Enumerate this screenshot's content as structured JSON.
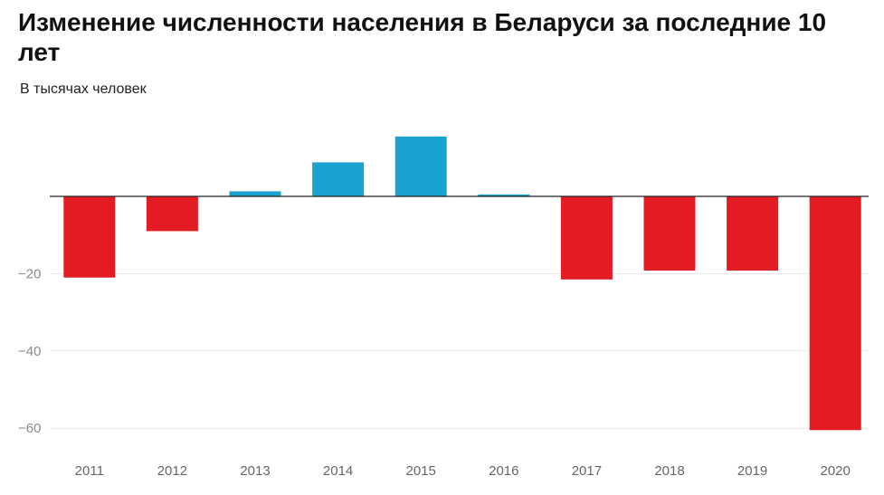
{
  "chart_data": {
    "type": "bar",
    "title": "Изменение численности населения в Беларуси за последние 10 лет",
    "subtitle": "В тысячах человек",
    "xlabel": "",
    "ylabel": "",
    "categories": [
      "2011",
      "2012",
      "2013",
      "2014",
      "2015",
      "2016",
      "2017",
      "2018",
      "2019",
      "2020"
    ],
    "values": [
      -21,
      -9,
      1.3,
      8.8,
      15.5,
      0.5,
      -21.5,
      -19.2,
      -19.2,
      -60.5
    ],
    "y_ticks": [
      -60,
      -40,
      -20
    ],
    "y_tick_labels": [
      "−60",
      "−40",
      "−20"
    ],
    "ylim": [
      -65,
      18
    ],
    "grid": true,
    "colors": {
      "positive": "#1aa3d1",
      "negative": "#e31b23",
      "grid": "#e6e6e6",
      "zero_line": "#222222"
    }
  }
}
